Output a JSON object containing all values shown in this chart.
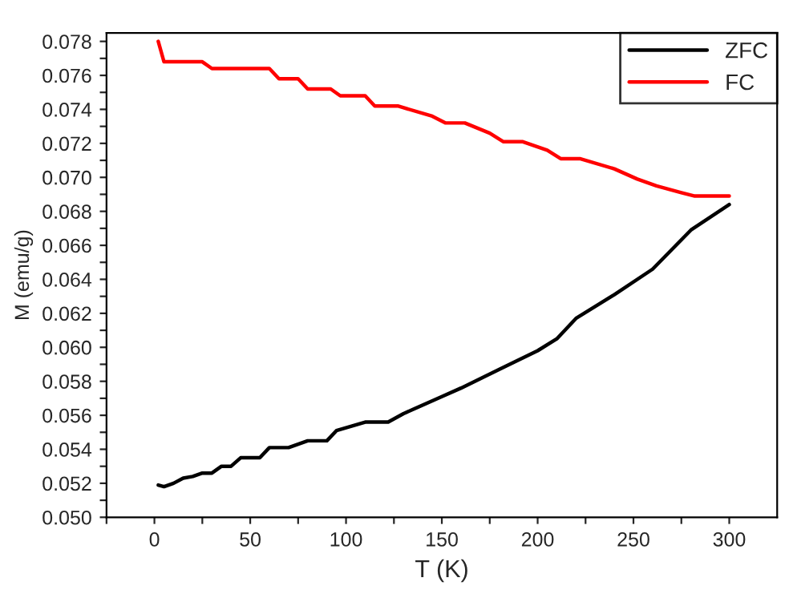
{
  "chart_data": {
    "type": "line",
    "xlabel": "T (K)",
    "ylabel": "M (emu/g)",
    "xlim": [
      -25,
      325
    ],
    "ylim": [
      0.05,
      0.0785
    ],
    "xticks": [
      {
        "value": -25,
        "label": null
      },
      {
        "value": 0,
        "label": "0"
      },
      {
        "value": 25,
        "label": null
      },
      {
        "value": 50,
        "label": "50"
      },
      {
        "value": 75,
        "label": null
      },
      {
        "value": 100,
        "label": "100"
      },
      {
        "value": 125,
        "label": null
      },
      {
        "value": 150,
        "label": "150"
      },
      {
        "value": 175,
        "label": null
      },
      {
        "value": 200,
        "label": "200"
      },
      {
        "value": 225,
        "label": null
      },
      {
        "value": 250,
        "label": "250"
      },
      {
        "value": 275,
        "label": null
      },
      {
        "value": 300,
        "label": "300"
      }
    ],
    "yticks": [
      {
        "value": 0.05,
        "label": "0.050"
      },
      {
        "value": 0.051,
        "label": null
      },
      {
        "value": 0.052,
        "label": "0.052"
      },
      {
        "value": 0.053,
        "label": null
      },
      {
        "value": 0.054,
        "label": "0.054"
      },
      {
        "value": 0.055,
        "label": null
      },
      {
        "value": 0.056,
        "label": "0.056"
      },
      {
        "value": 0.057,
        "label": null
      },
      {
        "value": 0.058,
        "label": "0.058"
      },
      {
        "value": 0.059,
        "label": null
      },
      {
        "value": 0.06,
        "label": "0.060"
      },
      {
        "value": 0.061,
        "label": null
      },
      {
        "value": 0.062,
        "label": "0.062"
      },
      {
        "value": 0.063,
        "label": null
      },
      {
        "value": 0.064,
        "label": "0.064"
      },
      {
        "value": 0.065,
        "label": null
      },
      {
        "value": 0.066,
        "label": "0.066"
      },
      {
        "value": 0.067,
        "label": null
      },
      {
        "value": 0.068,
        "label": "0.068"
      },
      {
        "value": 0.069,
        "label": null
      },
      {
        "value": 0.07,
        "label": "0.070"
      },
      {
        "value": 0.071,
        "label": null
      },
      {
        "value": 0.072,
        "label": "0.072"
      },
      {
        "value": 0.073,
        "label": null
      },
      {
        "value": 0.074,
        "label": "0.074"
      },
      {
        "value": 0.075,
        "label": null
      },
      {
        "value": 0.076,
        "label": "0.076"
      },
      {
        "value": 0.077,
        "label": null
      },
      {
        "value": 0.078,
        "label": "0.078"
      }
    ],
    "grid": false,
    "legend": "top right",
    "marker": "none",
    "line_style": "solid",
    "series": [
      {
        "name": "ZFC",
        "color": "#000000",
        "x": [
          2,
          5,
          10,
          15,
          20,
          25,
          30,
          35,
          40,
          45,
          55,
          60,
          70,
          80,
          90,
          95,
          110,
          122,
          130,
          150,
          160,
          180,
          200,
          210,
          220,
          240,
          260,
          280,
          300
        ],
        "values": [
          0.0519,
          0.0518,
          0.052,
          0.0523,
          0.0524,
          0.0526,
          0.0526,
          0.053,
          0.053,
          0.0535,
          0.0535,
          0.0541,
          0.0541,
          0.0545,
          0.0545,
          0.0551,
          0.0556,
          0.0556,
          0.0561,
          0.0571,
          0.0576,
          0.0587,
          0.0598,
          0.0605,
          0.0617,
          0.0631,
          0.0646,
          0.0669,
          0.0684
        ]
      },
      {
        "name": "FC",
        "color": "#ff0000",
        "x": [
          2,
          5,
          25,
          30,
          60,
          65,
          75,
          80,
          92,
          97,
          110,
          115,
          127,
          145,
          152,
          162,
          175,
          182,
          192,
          205,
          212,
          222,
          240,
          252,
          262,
          275,
          282,
          300
        ],
        "values": [
          0.078,
          0.0768,
          0.0768,
          0.0764,
          0.0764,
          0.0758,
          0.0758,
          0.0752,
          0.0752,
          0.0748,
          0.0748,
          0.0742,
          0.0742,
          0.0736,
          0.0732,
          0.0732,
          0.0726,
          0.0721,
          0.0721,
          0.0716,
          0.0711,
          0.0711,
          0.0705,
          0.0699,
          0.0695,
          0.0691,
          0.0689,
          0.0689
        ]
      }
    ]
  }
}
